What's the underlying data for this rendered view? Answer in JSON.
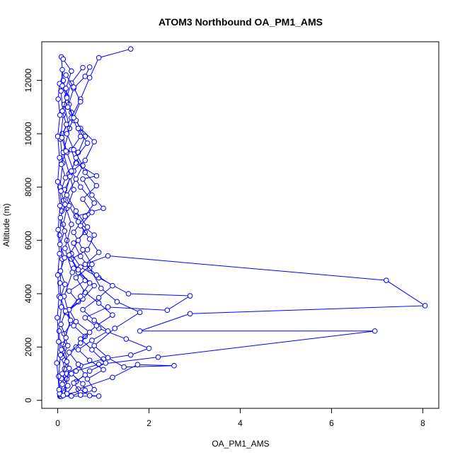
{
  "chart_data": {
    "type": "line",
    "title": "ATOM3 Northbound OA_PM1_AMS",
    "xlabel": "OA_PM1_AMS",
    "ylabel": "Altitude (m)",
    "xlim": [
      -0.35,
      8.35
    ],
    "ylim": [
      -300,
      13450
    ],
    "xticks": [
      0,
      2,
      4,
      6,
      8
    ],
    "yticks": [
      0,
      2000,
      4000,
      6000,
      8000,
      10000,
      12000
    ],
    "xtick_labels": [
      "0",
      "2",
      "4",
      "6",
      "8"
    ],
    "ytick_labels": [
      "0",
      "2000",
      "4000",
      "6000",
      "8000",
      "10000",
      "12000"
    ],
    "grid": false,
    "legend": "none",
    "series_color": "#0000ff",
    "marker": "open-circle",
    "series": [
      {
        "points": [
          [
            0.05,
            150
          ],
          [
            0.12,
            420
          ],
          [
            0.08,
            820
          ],
          [
            0.15,
            1180
          ],
          [
            0.1,
            1600
          ],
          [
            0.22,
            2050
          ],
          [
            0.14,
            2500
          ],
          [
            0.3,
            2900
          ],
          [
            0.18,
            3300
          ],
          [
            0.45,
            3700
          ],
          [
            0.25,
            4100
          ],
          [
            0.6,
            4500
          ],
          [
            0.35,
            4950
          ],
          [
            1.1,
            5420
          ],
          [
            7.2,
            4500
          ],
          [
            8.05,
            3550
          ],
          [
            2.9,
            3250
          ],
          [
            1.8,
            2600
          ],
          [
            6.95,
            2600
          ],
          [
            2.2,
            1620
          ],
          [
            0.9,
            1350
          ],
          [
            0.4,
            1100
          ],
          [
            0.2,
            800
          ],
          [
            0.1,
            500
          ],
          [
            0.05,
            200
          ]
        ]
      },
      {
        "points": [
          [
            0.06,
            180
          ],
          [
            0.1,
            600
          ],
          [
            0.2,
            1000
          ],
          [
            0.5,
            1300
          ],
          [
            1.0,
            1550
          ],
          [
            1.6,
            1700
          ],
          [
            2.0,
            1950
          ],
          [
            1.5,
            2300
          ],
          [
            0.9,
            2700
          ],
          [
            0.6,
            3100
          ],
          [
            1.1,
            3500
          ],
          [
            2.4,
            3380
          ],
          [
            2.9,
            3920
          ],
          [
            1.55,
            4000
          ],
          [
            0.9,
            4600
          ],
          [
            0.5,
            5000
          ],
          [
            0.3,
            5500
          ],
          [
            0.2,
            6000
          ],
          [
            0.12,
            6600
          ],
          [
            0.2,
            7200
          ],
          [
            0.35,
            7900
          ],
          [
            0.25,
            8500
          ],
          [
            0.6,
            9000
          ],
          [
            0.8,
            9700
          ],
          [
            0.5,
            10200
          ],
          [
            0.3,
            10800
          ],
          [
            0.2,
            11400
          ],
          [
            0.12,
            12000
          ],
          [
            0.08,
            12880
          ]
        ]
      },
      {
        "points": [
          [
            0.08,
            150
          ],
          [
            0.9,
            160
          ],
          [
            0.7,
            180
          ],
          [
            0.45,
            420
          ],
          [
            1.2,
            860
          ],
          [
            1.75,
            1340
          ],
          [
            2.55,
            1300
          ],
          [
            1.45,
            1250
          ],
          [
            1.1,
            1600
          ],
          [
            0.8,
            2050
          ],
          [
            1.25,
            2700
          ],
          [
            1.8,
            3300
          ],
          [
            1.3,
            3700
          ],
          [
            0.95,
            4200
          ],
          [
            0.7,
            4950
          ],
          [
            0.5,
            5400
          ],
          [
            0.35,
            5900
          ],
          [
            0.6,
            6300
          ],
          [
            0.4,
            6900
          ],
          [
            1.0,
            7200
          ],
          [
            0.75,
            7700
          ],
          [
            0.55,
            8300
          ],
          [
            0.85,
            8420
          ],
          [
            0.4,
            8900
          ],
          [
            0.3,
            9400
          ],
          [
            0.5,
            9900
          ],
          [
            0.35,
            10500
          ],
          [
            0.25,
            11100
          ],
          [
            0.18,
            11700
          ],
          [
            0.3,
            12350
          ],
          [
            0.12,
            12800
          ]
        ]
      },
      {
        "points": [
          [
            0.1,
            200
          ],
          [
            0.6,
            380
          ],
          [
            0.55,
            620
          ],
          [
            0.3,
            1000
          ],
          [
            0.15,
            1500
          ],
          [
            0.4,
            2000
          ],
          [
            0.6,
            2400
          ],
          [
            0.35,
            2800
          ],
          [
            0.2,
            3300
          ],
          [
            0.55,
            3800
          ],
          [
            0.8,
            4300
          ],
          [
            0.45,
            4800
          ],
          [
            0.3,
            5300
          ],
          [
            0.65,
            5650
          ],
          [
            0.8,
            6200
          ],
          [
            0.45,
            6700
          ],
          [
            0.25,
            7300
          ],
          [
            0.15,
            7900
          ],
          [
            0.35,
            8600
          ],
          [
            0.2,
            9300
          ],
          [
            0.1,
            10000
          ],
          [
            0.3,
            10600
          ],
          [
            0.5,
            11300
          ],
          [
            0.7,
            12100
          ],
          [
            0.9,
            12850
          ],
          [
            1.6,
            13180
          ]
        ]
      },
      {
        "points": [
          [
            0.04,
            250
          ],
          [
            0.02,
            900
          ],
          [
            0.06,
            1700
          ],
          [
            0.03,
            2600
          ],
          [
            0.08,
            3500
          ],
          [
            0.05,
            4400
          ],
          [
            0.1,
            5300
          ],
          [
            0.04,
            6200
          ],
          [
            0.09,
            7100
          ],
          [
            0.05,
            8000
          ],
          [
            0.11,
            8900
          ],
          [
            0.06,
            9800
          ],
          [
            0.12,
            10700
          ],
          [
            0.07,
            11600
          ],
          [
            0.1,
            12400
          ]
        ]
      },
      {
        "points": [
          [
            0.15,
            300
          ],
          [
            0.25,
            1200
          ],
          [
            0.12,
            2100
          ],
          [
            0.28,
            3000
          ],
          [
            0.14,
            3900
          ],
          [
            0.32,
            4800
          ],
          [
            0.16,
            5700
          ],
          [
            0.3,
            6600
          ],
          [
            0.13,
            7500
          ],
          [
            0.27,
            8400
          ],
          [
            0.12,
            9300
          ],
          [
            0.26,
            10200
          ],
          [
            0.14,
            11100
          ],
          [
            0.3,
            11900
          ],
          [
            0.55,
            12480
          ]
        ]
      },
      {
        "points": [
          [
            0.2,
            250
          ],
          [
            0.4,
            700
          ],
          [
            0.7,
            1100
          ],
          [
            1.05,
            1400
          ],
          [
            0.75,
            1900
          ],
          [
            0.5,
            2300
          ],
          [
            0.85,
            2800
          ],
          [
            1.2,
            3200
          ],
          [
            0.9,
            3650
          ],
          [
            0.6,
            4050
          ],
          [
            0.4,
            4600
          ],
          [
            0.75,
            5100
          ],
          [
            0.55,
            5650
          ],
          [
            0.35,
            6300
          ],
          [
            0.6,
            6900
          ],
          [
            0.8,
            7400
          ],
          [
            0.5,
            8000
          ],
          [
            0.3,
            8600
          ],
          [
            0.45,
            9300
          ],
          [
            0.6,
            9900
          ],
          [
            0.4,
            10500
          ],
          [
            0.22,
            11000
          ],
          [
            0.35,
            11700
          ],
          [
            0.6,
            12150
          ],
          [
            0.7,
            12500
          ]
        ]
      },
      {
        "points": [
          [
            0.03,
            400
          ],
          [
            -0.02,
            1400
          ],
          [
            0.02,
            2200
          ],
          [
            -0.01,
            3100
          ],
          [
            0.03,
            3900
          ],
          [
            0.0,
            4700
          ],
          [
            0.04,
            5500
          ],
          [
            0.01,
            6400
          ],
          [
            0.05,
            7300
          ],
          [
            0.0,
            8200
          ],
          [
            0.04,
            9100
          ],
          [
            0.0,
            9900
          ],
          [
            0.05,
            10700
          ],
          [
            0.01,
            11300
          ],
          [
            0.04,
            11880
          ]
        ]
      },
      {
        "points": [
          [
            0.3,
            160
          ],
          [
            0.5,
            300
          ],
          [
            0.35,
            650
          ],
          [
            0.6,
            950
          ],
          [
            0.45,
            1350
          ],
          [
            0.25,
            1800
          ],
          [
            0.5,
            2150
          ],
          [
            0.7,
            2550
          ],
          [
            0.4,
            2950
          ],
          [
            0.25,
            3400
          ],
          [
            0.5,
            3900
          ],
          [
            0.7,
            4400
          ],
          [
            0.45,
            4900
          ],
          [
            0.25,
            5450
          ],
          [
            0.45,
            6000
          ],
          [
            0.65,
            6500
          ],
          [
            0.4,
            7100
          ],
          [
            0.2,
            7700
          ],
          [
            0.4,
            8300
          ],
          [
            0.55,
            8800
          ],
          [
            0.35,
            9400
          ],
          [
            0.2,
            10000
          ],
          [
            0.35,
            10600
          ],
          [
            0.5,
            11200
          ],
          [
            0.35,
            11750
          ],
          [
            0.18,
            12200
          ]
        ]
      },
      {
        "points": [
          [
            0.12,
            180
          ],
          [
            0.22,
            550
          ],
          [
            0.1,
            1000
          ],
          [
            0.2,
            1450
          ],
          [
            0.08,
            1900
          ],
          [
            0.18,
            2350
          ],
          [
            0.07,
            2850
          ],
          [
            0.17,
            3350
          ],
          [
            0.06,
            3850
          ],
          [
            0.16,
            4350
          ],
          [
            0.06,
            4850
          ],
          [
            0.15,
            5350
          ],
          [
            0.05,
            5850
          ],
          [
            0.15,
            6350
          ],
          [
            0.06,
            6850
          ],
          [
            0.16,
            7350
          ],
          [
            0.07,
            7850
          ],
          [
            0.17,
            8350
          ],
          [
            0.08,
            8850
          ],
          [
            0.18,
            9350
          ],
          [
            0.09,
            9850
          ],
          [
            0.19,
            10350
          ],
          [
            0.1,
            10850
          ],
          [
            0.2,
            11350
          ],
          [
            0.1,
            11800
          ]
        ]
      },
      {
        "points": [
          [
            0.5,
            200
          ],
          [
            0.8,
            400
          ],
          [
            0.65,
            800
          ],
          [
            1.0,
            1150
          ],
          [
            0.7,
            1500
          ],
          [
            0.45,
            1900
          ],
          [
            0.75,
            2250
          ],
          [
            1.1,
            2600
          ],
          [
            0.8,
            3000
          ],
          [
            0.55,
            3400
          ],
          [
            0.9,
            3850
          ],
          [
            1.2,
            4300
          ],
          [
            0.85,
            4700
          ],
          [
            0.6,
            5100
          ],
          [
            0.9,
            5550
          ],
          [
            0.7,
            6050
          ],
          [
            0.5,
            6550
          ],
          [
            0.75,
            7050
          ],
          [
            0.55,
            7550
          ],
          [
            0.85,
            8050
          ],
          [
            0.6,
            8550
          ],
          [
            0.4,
            9100
          ],
          [
            0.65,
            9650
          ],
          [
            0.45,
            10200
          ]
        ]
      }
    ]
  }
}
